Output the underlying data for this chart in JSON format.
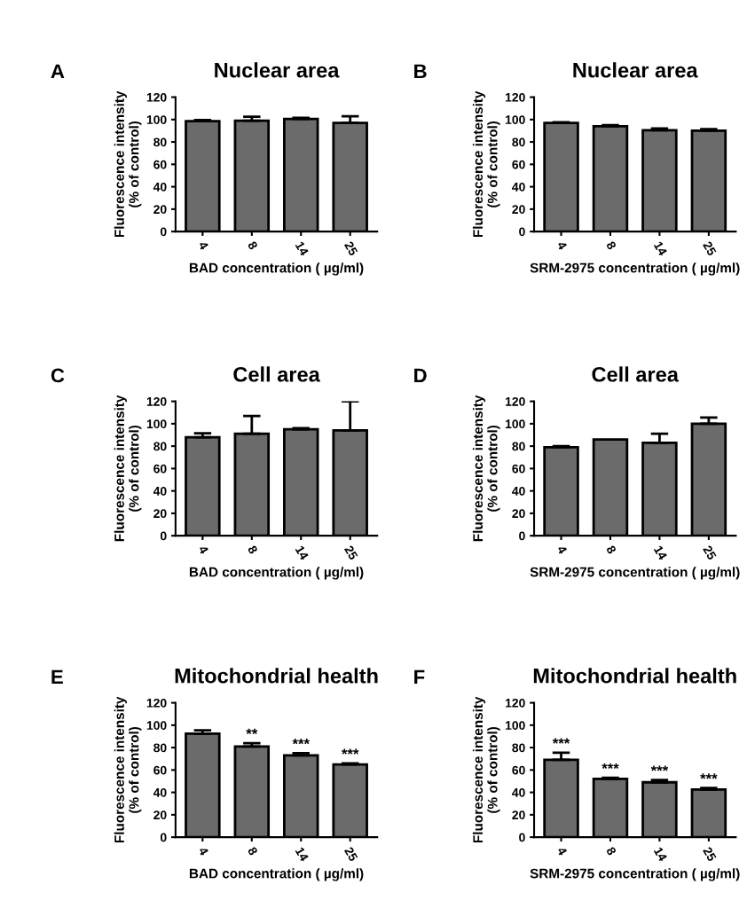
{
  "chart_data": [
    {
      "type": "bar",
      "title": "Nuclear area",
      "xlabel": "BAD concentration ( µg/ml)",
      "ylabel": "Fluorescence intensity\n(% of control)",
      "categories": [
        "4",
        "8",
        "14",
        "25"
      ],
      "values": [
        98.5,
        99,
        100.5,
        97
      ],
      "errors": [
        [
          98.5,
          99.5
        ],
        [
          99,
          102.5
        ],
        [
          100.5,
          101.5
        ],
        [
          97,
          103
        ]
      ],
      "color": "#6b6b6b",
      "ylim": [
        0,
        120
      ],
      "yticks": [
        0,
        20,
        40,
        60,
        80,
        100,
        120
      ],
      "grid": false,
      "annotations": [
        "A"
      ]
    },
    {
      "type": "bar",
      "title": "Nuclear area",
      "xlabel": "SRM-2975 concentration ( µg/ml)",
      "ylabel": "Fluorescence intensity\n(% of control)",
      "categories": [
        "4",
        "8",
        "14",
        "25"
      ],
      "values": [
        97,
        94,
        90.5,
        90
      ],
      "errors": [
        [
          97,
          97.5
        ],
        [
          94,
          95
        ],
        [
          90.5,
          92
        ],
        [
          90,
          91.5
        ]
      ],
      "color": "#6b6b6b",
      "ylim": [
        0,
        120
      ],
      "yticks": [
        0,
        20,
        40,
        60,
        80,
        100,
        120
      ],
      "grid": false,
      "annotations": [
        "B"
      ]
    },
    {
      "type": "bar",
      "title": "Cell area",
      "xlabel": "BAD concentration ( µg/ml)",
      "ylabel": "Fluorescence intensity\n(% of control)",
      "categories": [
        "4",
        "8",
        "14",
        "25"
      ],
      "values": [
        88,
        91,
        95,
        94
      ],
      "errors": [
        [
          88,
          91.5
        ],
        [
          91,
          107
        ],
        [
          95,
          96
        ],
        [
          94,
          120
        ]
      ],
      "color": "#6b6b6b",
      "ylim": [
        0,
        120
      ],
      "yticks": [
        0,
        20,
        40,
        60,
        80,
        100,
        120
      ],
      "grid": false,
      "annotations": [
        "C"
      ]
    },
    {
      "type": "bar",
      "title": "Cell area",
      "xlabel": "SRM-2975 concentration ( µg/ml)",
      "ylabel": "Fluorescence intensity\n(% of control)",
      "categories": [
        "4",
        "8",
        "14",
        "25"
      ],
      "values": [
        79,
        86,
        83,
        100
      ],
      "errors": [
        [
          79,
          80
        ],
        null,
        [
          83,
          91
        ],
        [
          100,
          105.5
        ]
      ],
      "color": "#6b6b6b",
      "ylim": [
        0,
        120
      ],
      "yticks": [
        0,
        20,
        40,
        60,
        80,
        100,
        120
      ],
      "grid": false,
      "annotations": [
        "D"
      ]
    },
    {
      "type": "bar",
      "title": "Mitochondrial health",
      "xlabel": "BAD concentration ( µg/ml)",
      "ylabel": "Fluorescence intensity\n(% of control)",
      "categories": [
        "4",
        "8",
        "14",
        "25"
      ],
      "values": [
        92.5,
        81,
        73,
        65
      ],
      "errors": [
        [
          92.5,
          95.5
        ],
        [
          81,
          84
        ],
        [
          73,
          75
        ],
        [
          65,
          66
        ]
      ],
      "color": "#6b6b6b",
      "ylim": [
        0,
        120
      ],
      "yticks": [
        0,
        20,
        40,
        60,
        80,
        100,
        120
      ],
      "grid": false,
      "annotations": [
        "E",
        {
          "text": "**",
          "x": "8",
          "y": 84
        },
        {
          "text": "***",
          "x": "14",
          "y": 75
        },
        {
          "text": "***",
          "x": "25",
          "y": 66
        }
      ]
    },
    {
      "type": "bar",
      "title": "Mitochondrial health",
      "xlabel": "SRM-2975 concentration ( µg/ml)",
      "ylabel": "Fluorescence intensity\n(% of control)",
      "categories": [
        "4",
        "8",
        "14",
        "25"
      ],
      "values": [
        69,
        52,
        49,
        42.5
      ],
      "errors": [
        [
          69,
          75.5
        ],
        [
          52,
          53
        ],
        [
          49,
          51
        ],
        [
          42.5,
          44
        ]
      ],
      "color": "#6b6b6b",
      "ylim": [
        0,
        120
      ],
      "yticks": [
        0,
        20,
        40,
        60,
        80,
        100,
        120
      ],
      "grid": false,
      "annotations": [
        "F",
        {
          "text": "***",
          "x": "4",
          "y": 75.5
        },
        {
          "text": "***",
          "x": "8",
          "y": 53
        },
        {
          "text": "***",
          "x": "14",
          "y": 51
        },
        {
          "text": "***",
          "x": "25",
          "y": 44
        }
      ]
    }
  ]
}
